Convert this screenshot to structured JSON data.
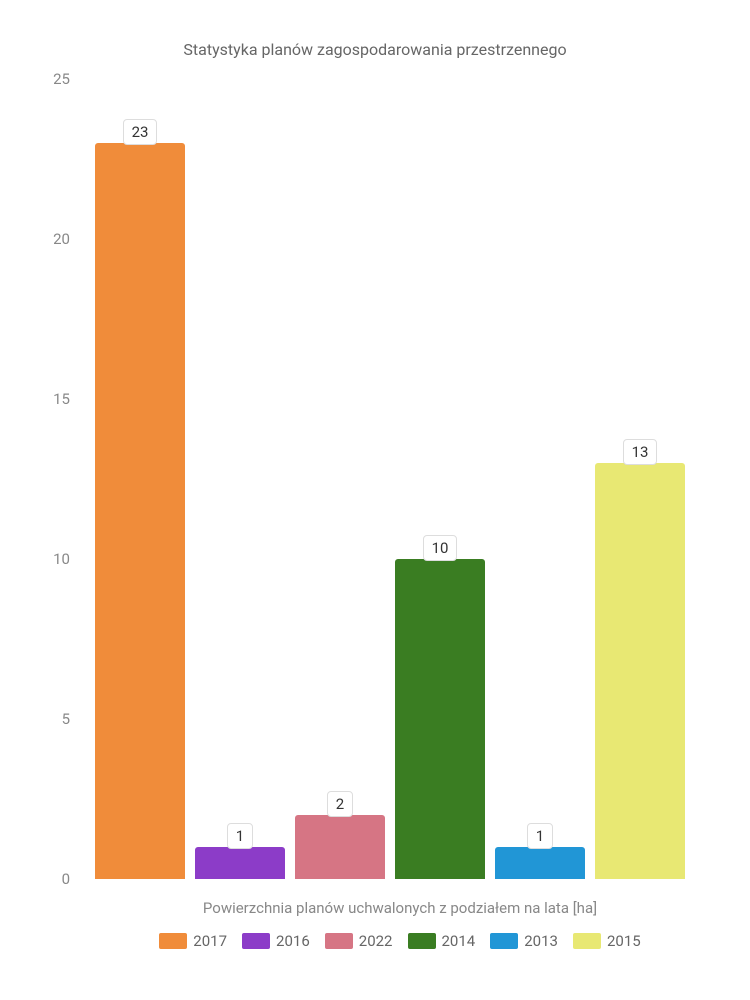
{
  "chart": {
    "type": "bar",
    "title": "Statystyka planów zagospodarowania przestrzennego",
    "x_axis_label": "Powierzchnia planów uchwalonych z podziałem na lata [ha]",
    "ylim": [
      0,
      25
    ],
    "yticks": [
      0,
      5,
      10,
      15,
      20,
      25
    ],
    "background_color": "#ffffff",
    "title_fontsize": 16,
    "title_color": "#666666",
    "tick_fontsize": 15,
    "tick_color": "#888888",
    "bar_width_ratio": 0.85,
    "series": [
      {
        "label": "2017",
        "value": 23,
        "color": "#f08c3a"
      },
      {
        "label": "2016",
        "value": 1,
        "color": "#8c3cc8"
      },
      {
        "label": "2022",
        "value": 2,
        "color": "#d67584"
      },
      {
        "label": "2014",
        "value": 10,
        "color": "#3a7d22"
      },
      {
        "label": "2013",
        "value": 1,
        "color": "#2196d6"
      },
      {
        "label": "2015",
        "value": 13,
        "color": "#e8e873"
      }
    ]
  }
}
